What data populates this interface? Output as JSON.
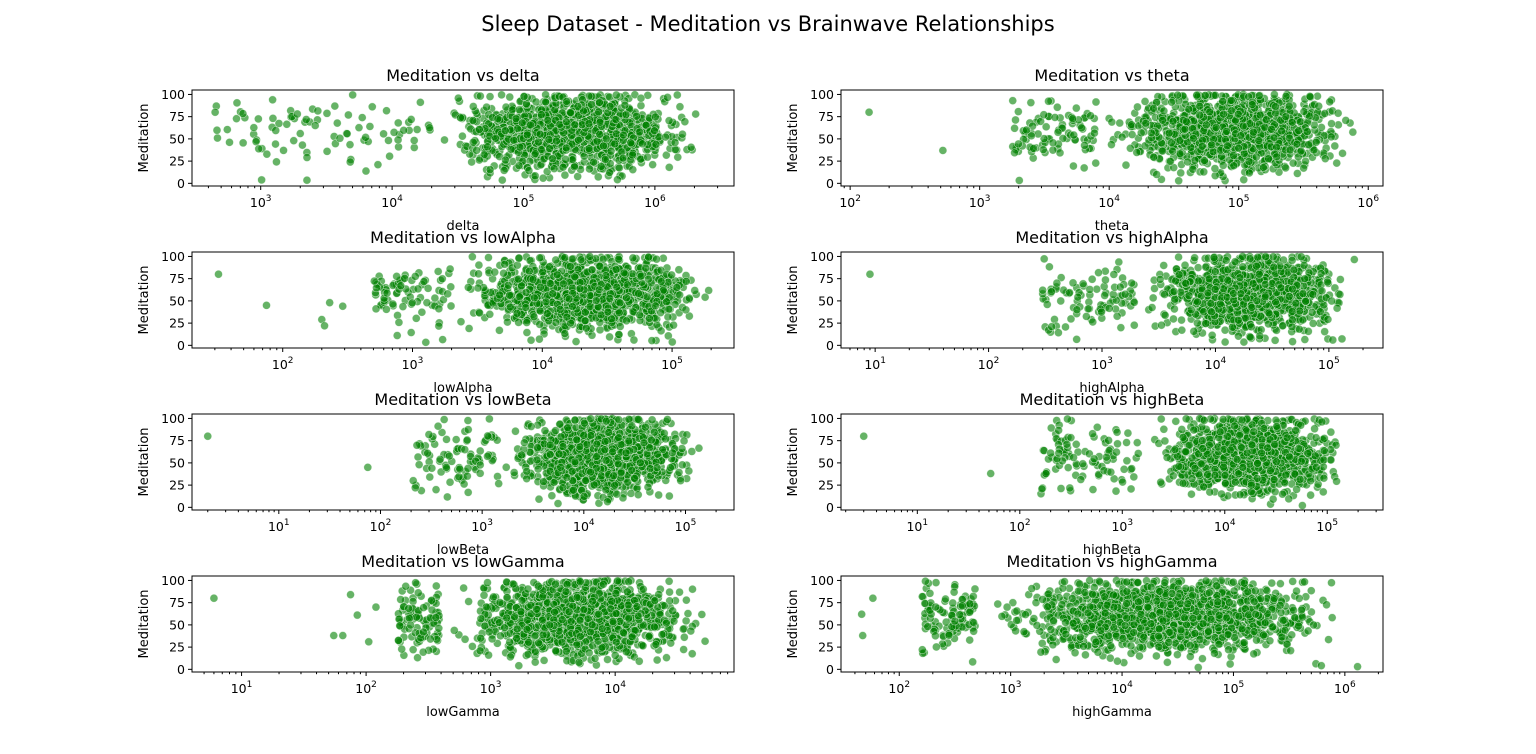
{
  "figure": {
    "title": "Sleep Dataset - Meditation vs Brainwave Relationships",
    "point_color": "#008000",
    "point_edge_color": "#ffffff"
  },
  "chart_data": [
    {
      "type": "scatter",
      "title": "Meditation vs delta",
      "xlabel": "delta",
      "ylabel": "Meditation",
      "xscale": "log",
      "xlim": [
        300,
        4000000
      ],
      "ylim": [
        -3,
        105
      ],
      "yticks": [
        0,
        25,
        50,
        75,
        100
      ],
      "xtick_exponents": [
        3,
        4,
        5,
        6
      ],
      "x_dist": {
        "min": 450,
        "max": 2500000,
        "dense_start": 20000,
        "n": 1400
      },
      "outliers": [
        {
          "x": 450,
          "y": 80
        },
        {
          "x": 1900,
          "y": 78
        },
        {
          "x": 2000,
          "y": 56
        },
        {
          "x": 2600,
          "y": 65
        },
        {
          "x": 3200,
          "y": 36
        },
        {
          "x": 4800,
          "y": 24
        },
        {
          "x": 7800,
          "y": 21
        }
      ]
    },
    {
      "type": "scatter",
      "title": "Meditation vs theta",
      "xlabel": "theta",
      "ylabel": "Meditation",
      "xscale": "log",
      "xlim": [
        85,
        1300000
      ],
      "ylim": [
        -3,
        105
      ],
      "yticks": [
        0,
        25,
        50,
        75,
        100
      ],
      "xtick_exponents": [
        2,
        3,
        4,
        5,
        6
      ],
      "x_dist": {
        "min": 1800,
        "max": 900000,
        "dense_start": 8000,
        "n": 1400
      },
      "outliers": [
        {
          "x": 140,
          "y": 80
        },
        {
          "x": 520,
          "y": 37
        },
        {
          "x": 1800,
          "y": 93
        },
        {
          "x": 2300,
          "y": 60
        }
      ]
    },
    {
      "type": "scatter",
      "title": "Meditation vs lowAlpha",
      "xlabel": "lowAlpha",
      "ylabel": "Meditation",
      "xscale": "log",
      "xlim": [
        20,
        300000
      ],
      "ylim": [
        -3,
        105
      ],
      "yticks": [
        0,
        25,
        50,
        75,
        100
      ],
      "xtick_exponents": [
        2,
        3,
        4,
        5
      ],
      "x_dist": {
        "min": 500,
        "max": 210000,
        "dense_start": 2000,
        "n": 1400
      },
      "outliers": [
        {
          "x": 32,
          "y": 80
        },
        {
          "x": 75,
          "y": 45
        },
        {
          "x": 200,
          "y": 29
        },
        {
          "x": 210,
          "y": 22
        },
        {
          "x": 230,
          "y": 48
        },
        {
          "x": 290,
          "y": 44
        }
      ]
    },
    {
      "type": "scatter",
      "title": "Meditation vs highAlpha",
      "xlabel": "highAlpha",
      "ylabel": "Meditation",
      "xscale": "log",
      "xlim": [
        5,
        300000
      ],
      "ylim": [
        -3,
        105
      ],
      "yticks": [
        0,
        25,
        50,
        75,
        100
      ],
      "xtick_exponents": [
        1,
        2,
        3,
        4,
        5
      ],
      "x_dist": {
        "min": 300,
        "max": 190000,
        "dense_start": 2000,
        "n": 1400
      },
      "outliers": [
        {
          "x": 9,
          "y": 80
        },
        {
          "x": 300,
          "y": 58
        },
        {
          "x": 300,
          "y": 62
        },
        {
          "x": 360,
          "y": 21
        },
        {
          "x": 400,
          "y": 70
        }
      ]
    },
    {
      "type": "scatter",
      "title": "Meditation vs lowBeta",
      "xlabel": "lowBeta",
      "ylabel": "Meditation",
      "xscale": "log",
      "xlim": [
        1.4,
        300000
      ],
      "ylim": [
        -3,
        105
      ],
      "yticks": [
        0,
        25,
        50,
        75,
        100
      ],
      "xtick_exponents": [
        1,
        2,
        3,
        4,
        5
      ],
      "x_dist": {
        "min": 220,
        "max": 160000,
        "dense_start": 1500,
        "n": 1400
      },
      "outliers": [
        {
          "x": 2,
          "y": 80
        },
        {
          "x": 75,
          "y": 45
        },
        {
          "x": 210,
          "y": 30
        },
        {
          "x": 220,
          "y": 22
        },
        {
          "x": 240,
          "y": 48
        },
        {
          "x": 320,
          "y": 44
        }
      ]
    },
    {
      "type": "scatter",
      "title": "Meditation vs highBeta",
      "xlabel": "highBeta",
      "ylabel": "Meditation",
      "xscale": "log",
      "xlim": [
        1.8,
        350000
      ],
      "ylim": [
        -3,
        105
      ],
      "yticks": [
        0,
        25,
        50,
        75,
        100
      ],
      "xtick_exponents": [
        1,
        2,
        3,
        4,
        5
      ],
      "x_dist": {
        "min": 160,
        "max": 180000,
        "dense_start": 1500,
        "n": 1400
      },
      "outliers": [
        {
          "x": 3,
          "y": 80
        },
        {
          "x": 52,
          "y": 38
        },
        {
          "x": 180,
          "y": 38
        },
        {
          "x": 200,
          "y": 61
        },
        {
          "x": 240,
          "y": 61
        }
      ]
    },
    {
      "type": "scatter",
      "title": "Meditation vs lowGamma",
      "xlabel": "lowGamma",
      "ylabel": "Meditation",
      "xscale": "log",
      "xlim": [
        4,
        90000
      ],
      "ylim": [
        -3,
        105
      ],
      "yticks": [
        0,
        25,
        50,
        75,
        100
      ],
      "xtick_exponents": [
        1,
        2,
        3,
        4
      ],
      "x_dist": {
        "min": 180,
        "max": 62000,
        "dense_start": 400,
        "n": 1400
      },
      "outliers": [
        {
          "x": 6,
          "y": 80
        },
        {
          "x": 55,
          "y": 38
        },
        {
          "x": 65,
          "y": 38
        },
        {
          "x": 75,
          "y": 84
        },
        {
          "x": 85,
          "y": 61
        },
        {
          "x": 105,
          "y": 31
        },
        {
          "x": 120,
          "y": 70
        }
      ]
    },
    {
      "type": "scatter",
      "title": "Meditation vs highGamma",
      "xlabel": "highGamma",
      "ylabel": "Meditation",
      "xscale": "log",
      "xlim": [
        30,
        2200000
      ],
      "ylim": [
        -3,
        105
      ],
      "yticks": [
        0,
        25,
        50,
        75,
        100
      ],
      "xtick_exponents": [
        2,
        3,
        4,
        5,
        6
      ],
      "x_dist": {
        "min": 160,
        "max": 1300000,
        "dense_start": 500,
        "n": 1600
      },
      "outliers": [
        {
          "x": 46,
          "y": 62
        },
        {
          "x": 47,
          "y": 38
        },
        {
          "x": 58,
          "y": 80
        },
        {
          "x": 180,
          "y": 48
        },
        {
          "x": 1300000,
          "y": 3
        }
      ]
    }
  ]
}
